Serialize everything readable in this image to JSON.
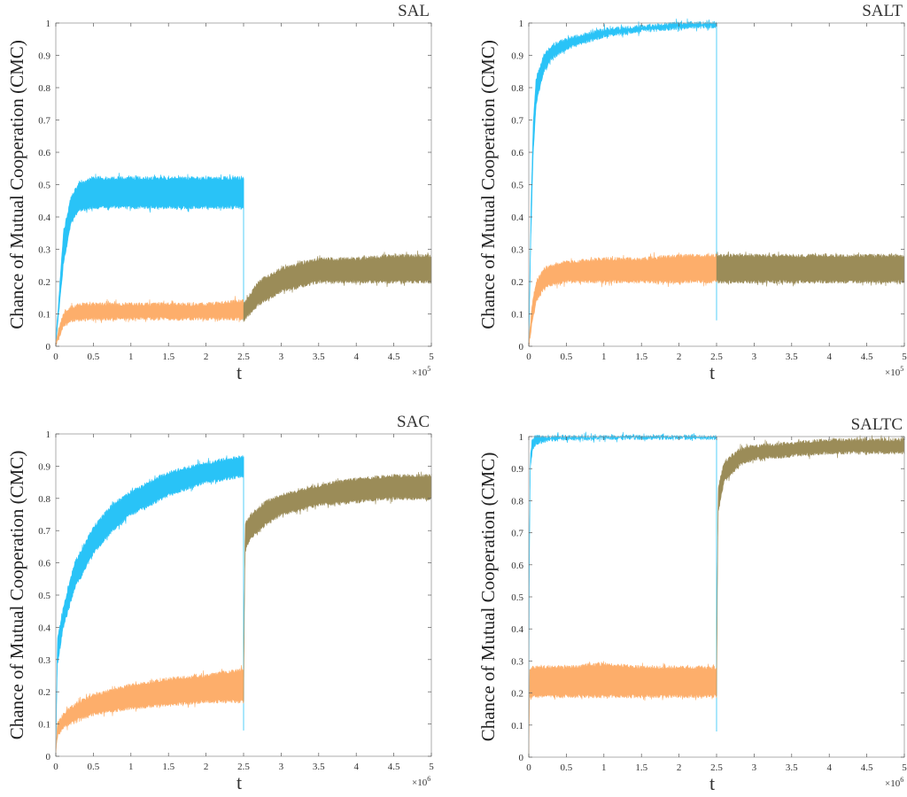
{
  "figure": {
    "ylabel": "Chance of Mutual Cooperation (CMC)",
    "xlabel": "t"
  },
  "colors": {
    "blue": "#29C3F7",
    "orange": "#FDAE6B",
    "olive": "#9B8C58",
    "axis": "#5a5a5a"
  },
  "chart_data": [
    {
      "type": "line",
      "title": "SAL",
      "xlabel": "t",
      "ylabel": "Chance of Mutual Cooperation (CMC)",
      "xlim": [
        0,
        5
      ],
      "ylim": [
        0,
        1
      ],
      "x_multiplier": "×10^5",
      "x_exponent": "5",
      "xticks": [
        "0",
        "0.5",
        "1",
        "1.5",
        "2",
        "2.5",
        "3",
        "3.5",
        "4",
        "4.5",
        "5"
      ],
      "yticks": [
        "0",
        "0.1",
        "0.2",
        "0.3",
        "0.4",
        "0.5",
        "0.6",
        "0.7",
        "0.8",
        "0.9",
        "1"
      ],
      "grid": false,
      "series": [
        {
          "color": "blue",
          "x": [
            0,
            0.1,
            0.2,
            0.3,
            0.5,
            1.0,
            1.5,
            2.0,
            2.5
          ],
          "y_low": [
            0,
            0.25,
            0.38,
            0.42,
            0.43,
            0.43,
            0.43,
            0.43,
            0.43
          ],
          "y_high": [
            0.02,
            0.35,
            0.46,
            0.5,
            0.52,
            0.52,
            0.52,
            0.52,
            0.52
          ]
        },
        {
          "color": "orange",
          "x": [
            0,
            0.1,
            0.2,
            0.3,
            0.5,
            1.0,
            1.5,
            2.0,
            2.5
          ],
          "y_low": [
            0,
            0.06,
            0.08,
            0.08,
            0.085,
            0.085,
            0.085,
            0.085,
            0.085
          ],
          "y_high": [
            0.02,
            0.1,
            0.12,
            0.13,
            0.13,
            0.13,
            0.13,
            0.13,
            0.14
          ]
        },
        {
          "color": "olive",
          "x": [
            2.5,
            2.7,
            3.0,
            3.5,
            4.0,
            4.5,
            5.0
          ],
          "y_low": [
            0.08,
            0.13,
            0.17,
            0.2,
            0.2,
            0.2,
            0.2
          ],
          "y_high": [
            0.13,
            0.2,
            0.24,
            0.27,
            0.27,
            0.28,
            0.28
          ]
        }
      ]
    },
    {
      "type": "line",
      "title": "SALT",
      "xlabel": "t",
      "ylabel": "Chance of Mutual Cooperation (CMC)",
      "xlim": [
        0,
        5
      ],
      "ylim": [
        0,
        1
      ],
      "x_multiplier": "×10^5",
      "x_exponent": "5",
      "xticks": [
        "0",
        "0.5",
        "1",
        "1.5",
        "2",
        "2.5",
        "3",
        "3.5",
        "4",
        "4.5",
        "5"
      ],
      "yticks": [
        "0",
        "0.1",
        "0.2",
        "0.3",
        "0.4",
        "0.5",
        "0.6",
        "0.7",
        "0.8",
        "0.9",
        "1"
      ],
      "grid": false,
      "series": [
        {
          "color": "blue",
          "x": [
            0,
            0.03,
            0.06,
            0.1,
            0.2,
            0.3,
            0.5,
            1.0,
            1.5,
            2.0,
            2.5
          ],
          "y_low": [
            0,
            0.35,
            0.6,
            0.75,
            0.85,
            0.89,
            0.92,
            0.96,
            0.975,
            0.985,
            0.99
          ],
          "y_high": [
            0.02,
            0.45,
            0.7,
            0.83,
            0.9,
            0.93,
            0.95,
            0.98,
            0.99,
            1.0,
            1.0
          ]
        },
        {
          "color": "orange",
          "x": [
            0,
            0.05,
            0.1,
            0.2,
            0.3,
            0.5,
            1.0,
            1.5,
            2.0,
            2.5
          ],
          "y_low": [
            0,
            0.08,
            0.14,
            0.18,
            0.19,
            0.2,
            0.2,
            0.2,
            0.2,
            0.2
          ],
          "y_high": [
            0.02,
            0.14,
            0.2,
            0.24,
            0.25,
            0.26,
            0.27,
            0.27,
            0.28,
            0.28
          ]
        },
        {
          "color": "olive",
          "x": [
            2.5,
            3.0,
            3.5,
            4.0,
            4.5,
            5.0
          ],
          "y_low": [
            0.2,
            0.2,
            0.2,
            0.2,
            0.2,
            0.2
          ],
          "y_high": [
            0.28,
            0.28,
            0.28,
            0.28,
            0.28,
            0.28
          ]
        }
      ]
    },
    {
      "type": "line",
      "title": "SAC",
      "xlabel": "t",
      "ylabel": "Chance of Mutual Cooperation (CMC)",
      "xlim": [
        0,
        5
      ],
      "ylim": [
        0,
        1
      ],
      "x_multiplier": "×10^6",
      "x_exponent": "6",
      "xticks": [
        "0",
        "0.5",
        "1",
        "1.5",
        "2",
        "2.5",
        "3",
        "3.5",
        "4",
        "4.5",
        "5"
      ],
      "yticks": [
        "0",
        "0.1",
        "0.2",
        "0.3",
        "0.4",
        "0.5",
        "0.6",
        "0.7",
        "0.8",
        "0.9",
        "1"
      ],
      "grid": false,
      "series": [
        {
          "color": "blue",
          "x": [
            0,
            0.02,
            0.1,
            0.25,
            0.5,
            0.75,
            1.0,
            1.5,
            2.0,
            2.5
          ],
          "y_low": [
            0,
            0.28,
            0.4,
            0.52,
            0.63,
            0.7,
            0.75,
            0.81,
            0.85,
            0.87
          ],
          "y_high": [
            0.02,
            0.36,
            0.46,
            0.6,
            0.71,
            0.78,
            0.82,
            0.88,
            0.91,
            0.93
          ]
        },
        {
          "color": "orange",
          "x": [
            0,
            0.02,
            0.1,
            0.25,
            0.5,
            1.0,
            1.5,
            2.0,
            2.5
          ],
          "y_low": [
            0,
            0.06,
            0.09,
            0.11,
            0.13,
            0.15,
            0.16,
            0.17,
            0.17
          ],
          "y_high": [
            0.02,
            0.1,
            0.13,
            0.16,
            0.19,
            0.22,
            0.24,
            0.25,
            0.27
          ]
        },
        {
          "color": "olive",
          "x": [
            2.5,
            2.52,
            2.6,
            2.8,
            3.0,
            3.5,
            4.0,
            4.5,
            5.0
          ],
          "y_low": [
            0.17,
            0.64,
            0.68,
            0.72,
            0.75,
            0.78,
            0.79,
            0.8,
            0.8
          ],
          "y_high": [
            0.25,
            0.72,
            0.75,
            0.79,
            0.81,
            0.84,
            0.86,
            0.87,
            0.87
          ]
        }
      ]
    },
    {
      "type": "line",
      "title": "SALTC",
      "xlabel": "t",
      "ylabel": "Chance of Mutual Cooperation (CMC)",
      "xlim": [
        0,
        5
      ],
      "ylim": [
        0,
        1
      ],
      "x_multiplier": "×10^6",
      "x_exponent": "6",
      "xticks": [
        "0",
        "0.5",
        "1",
        "1.5",
        "2",
        "2.5",
        "3",
        "3.5",
        "4",
        "4.5",
        "5"
      ],
      "yticks": [
        "0",
        "0.1",
        "0.2",
        "0.3",
        "0.4",
        "0.5",
        "0.6",
        "0.7",
        "0.8",
        "0.9",
        "1"
      ],
      "grid": false,
      "series": [
        {
          "color": "blue",
          "x": [
            0,
            0.005,
            0.02,
            0.05,
            0.1,
            0.3,
            1.0,
            2.5
          ],
          "y_low": [
            0,
            0.5,
            0.9,
            0.96,
            0.98,
            0.99,
            0.995,
            0.995
          ],
          "y_high": [
            0.02,
            0.6,
            0.95,
            0.99,
            1.0,
            1.0,
            1.0,
            1.0
          ]
        },
        {
          "color": "orange",
          "x": [
            0,
            0.01,
            0.05,
            0.1,
            0.5,
            1.0,
            1.5,
            2.0,
            2.5
          ],
          "y_low": [
            0,
            0.18,
            0.19,
            0.19,
            0.19,
            0.19,
            0.19,
            0.19,
            0.19
          ],
          "y_high": [
            0.02,
            0.27,
            0.28,
            0.28,
            0.28,
            0.29,
            0.28,
            0.28,
            0.28
          ]
        },
        {
          "color": "olive",
          "x": [
            2.5,
            2.52,
            2.6,
            2.8,
            3.0,
            3.5,
            4.0,
            4.5,
            5.0
          ],
          "y_low": [
            0.19,
            0.76,
            0.86,
            0.91,
            0.93,
            0.94,
            0.95,
            0.95,
            0.95
          ],
          "y_high": [
            0.28,
            0.84,
            0.92,
            0.96,
            0.97,
            0.98,
            0.99,
            0.99,
            0.99
          ]
        }
      ]
    }
  ]
}
